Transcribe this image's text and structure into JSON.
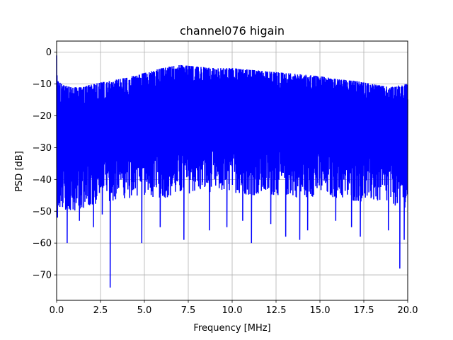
{
  "chart_data": {
    "type": "line",
    "title": "channel076 higain",
    "xlabel": "Frequency [MHz]",
    "ylabel": "PSD [dB]",
    "xlim": [
      0,
      20
    ],
    "ylim": [
      -78,
      3.5
    ],
    "xticks": [
      0.0,
      2.5,
      5.0,
      7.5,
      10.0,
      12.5,
      15.0,
      17.5,
      20.0
    ],
    "xtick_labels": [
      "0.0",
      "2.5",
      "5.0",
      "7.5",
      "10.0",
      "12.5",
      "15.0",
      "17.5",
      "20.0"
    ],
    "yticks": [
      0,
      -10,
      -20,
      -30,
      -40,
      -50,
      -60,
      -70
    ],
    "ytick_labels": [
      "0",
      "−10",
      "−20",
      "−30",
      "−40",
      "−50",
      "−60",
      "−70"
    ],
    "grid": true,
    "line_color": "#0000ff",
    "series": [
      {
        "upper_envelope": {
          "x": [
            0.0,
            0.05,
            0.3,
            0.8,
            1.5,
            2.0,
            2.5,
            3.0,
            4.0,
            5.0,
            6.0,
            7.0,
            8.0,
            9.0,
            10.0,
            11.0,
            12.0,
            13.0,
            14.0,
            15.0,
            16.0,
            17.0,
            18.0,
            19.0,
            19.9
          ],
          "y": [
            -1,
            -9,
            -10,
            -11,
            -11,
            -10,
            -9.5,
            -9,
            -8,
            -6.5,
            -5,
            -4,
            -4.5,
            -5,
            -5,
            -5.5,
            -6,
            -6.5,
            -7,
            -7.5,
            -8.5,
            -9,
            -10,
            -11,
            -10
          ]
        },
        "lower_envelope": {
          "x": [
            0.0,
            1.0,
            2.0,
            3.0,
            4.0,
            5.0,
            6.0,
            7.0,
            8.0,
            9.0,
            10.0,
            11.0,
            12.0,
            13.0,
            14.0,
            15.0,
            16.0,
            17.0,
            18.0,
            19.0,
            20.0
          ],
          "y": [
            -46,
            -47,
            -45,
            -44,
            -43,
            -42,
            -43,
            -42,
            -41,
            -41,
            -41,
            -42,
            -42,
            -42,
            -43,
            -42,
            -43,
            -44,
            -44,
            -45,
            -46
          ]
        },
        "dips": {
          "x": [
            0.05,
            0.6,
            1.3,
            2.1,
            2.6,
            3.05,
            4.85,
            5.9,
            7.25,
            8.7,
            9.7,
            10.6,
            11.1,
            12.2,
            13.05,
            13.85,
            14.3,
            15.9,
            16.8,
            17.3,
            18.9,
            19.55,
            19.8
          ],
          "y": [
            -52,
            -60,
            -53,
            -55,
            -51,
            -74,
            -60,
            -55,
            -59,
            -56,
            -55,
            -53,
            -60,
            -54,
            -58,
            -59,
            -56,
            -53,
            -55,
            -58,
            -56,
            -68,
            -59
          ]
        }
      }
    ]
  }
}
